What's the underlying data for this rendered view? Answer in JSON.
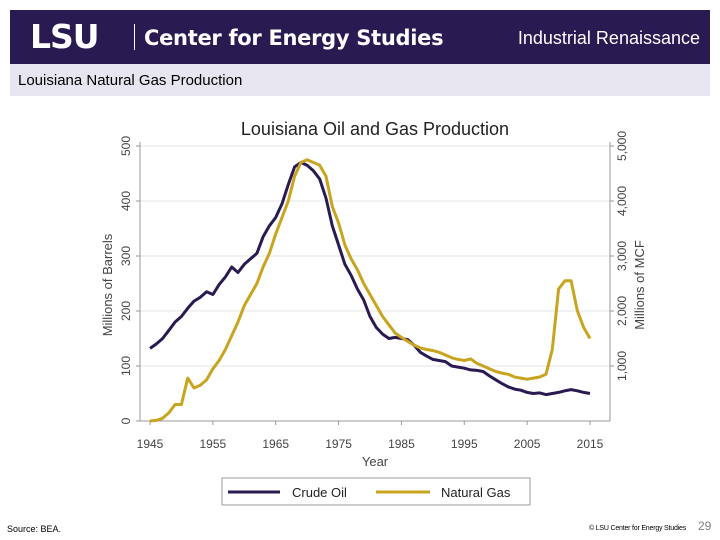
{
  "header": {
    "logo_text": "LSU",
    "center_text": "Center for Energy Studies",
    "title": "Industrial Renaissance"
  },
  "subtitle": "Louisiana Natural Gas Production",
  "footer": {
    "source": "Source:  BEA.",
    "copyright": "© LSU Center for Energy Studies",
    "slide_number": "29"
  },
  "colors": {
    "header_bg": "#2a1a52",
    "subbar_bg": "#e7e5ef",
    "crude_oil": "#2a1a52",
    "natural_gas": "#c9a41f"
  },
  "chart_data": {
    "type": "line",
    "title": "Louisiana Oil and Gas Production",
    "xlabel": "Year",
    "ylabel_left": "Millions of Barrels",
    "ylabel_right": "Millions of MCF",
    "xlim": [
      1945,
      2015
    ],
    "ylim_left": [
      0,
      500
    ],
    "ylim_right": [
      0,
      5000
    ],
    "x_ticks": [
      "1945",
      "1955",
      "1965",
      "1975",
      "1985",
      "1995",
      "2005",
      "2015"
    ],
    "y_ticks_left": [
      "0",
      "100",
      "200",
      "300",
      "400",
      "500"
    ],
    "y_ticks_right": [
      "1,000",
      "2,000",
      "3,000",
      "4,000",
      "5,000"
    ],
    "legend_position": "bottom",
    "series": [
      {
        "name": "Crude Oil",
        "axis": "left",
        "points": [
          [
            1945,
            132
          ],
          [
            1946,
            140
          ],
          [
            1947,
            150
          ],
          [
            1948,
            165
          ],
          [
            1949,
            180
          ],
          [
            1950,
            190
          ],
          [
            1951,
            205
          ],
          [
            1952,
            218
          ],
          [
            1953,
            225
          ],
          [
            1954,
            235
          ],
          [
            1955,
            230
          ],
          [
            1956,
            248
          ],
          [
            1957,
            262
          ],
          [
            1958,
            280
          ],
          [
            1959,
            270
          ],
          [
            1960,
            285
          ],
          [
            1961,
            295
          ],
          [
            1962,
            305
          ],
          [
            1963,
            335
          ],
          [
            1964,
            355
          ],
          [
            1965,
            370
          ],
          [
            1966,
            395
          ],
          [
            1967,
            430
          ],
          [
            1968,
            462
          ],
          [
            1969,
            470
          ],
          [
            1970,
            465
          ],
          [
            1971,
            455
          ],
          [
            1972,
            440
          ],
          [
            1973,
            405
          ],
          [
            1974,
            355
          ],
          [
            1975,
            320
          ],
          [
            1976,
            285
          ],
          [
            1977,
            265
          ],
          [
            1978,
            240
          ],
          [
            1979,
            220
          ],
          [
            1980,
            190
          ],
          [
            1981,
            170
          ],
          [
            1982,
            158
          ],
          [
            1983,
            150
          ],
          [
            1984,
            152
          ],
          [
            1985,
            150
          ],
          [
            1986,
            148
          ],
          [
            1987,
            138
          ],
          [
            1988,
            125
          ],
          [
            1989,
            118
          ],
          [
            1990,
            112
          ],
          [
            1991,
            110
          ],
          [
            1992,
            108
          ],
          [
            1993,
            100
          ],
          [
            1994,
            98
          ],
          [
            1995,
            96
          ],
          [
            1996,
            93
          ],
          [
            1997,
            92
          ],
          [
            1998,
            90
          ],
          [
            1999,
            82
          ],
          [
            2000,
            75
          ],
          [
            2001,
            68
          ],
          [
            2002,
            62
          ],
          [
            2003,
            58
          ],
          [
            2004,
            56
          ],
          [
            2005,
            52
          ],
          [
            2006,
            50
          ],
          [
            2007,
            51
          ],
          [
            2008,
            48
          ],
          [
            2009,
            50
          ],
          [
            2010,
            52
          ],
          [
            2011,
            55
          ],
          [
            2012,
            57
          ],
          [
            2013,
            55
          ],
          [
            2014,
            52
          ],
          [
            2015,
            50
          ]
        ]
      },
      {
        "name": "Natural Gas",
        "axis": "right",
        "points": [
          [
            1945,
            0
          ],
          [
            1946,
            10
          ],
          [
            1947,
            50
          ],
          [
            1948,
            150
          ],
          [
            1949,
            300
          ],
          [
            1950,
            300
          ],
          [
            1951,
            780
          ],
          [
            1952,
            600
          ],
          [
            1953,
            650
          ],
          [
            1954,
            750
          ],
          [
            1955,
            950
          ],
          [
            1956,
            1100
          ],
          [
            1957,
            1300
          ],
          [
            1958,
            1550
          ],
          [
            1959,
            1800
          ],
          [
            1960,
            2100
          ],
          [
            1961,
            2300
          ],
          [
            1962,
            2500
          ],
          [
            1963,
            2800
          ],
          [
            1964,
            3050
          ],
          [
            1965,
            3400
          ],
          [
            1966,
            3700
          ],
          [
            1967,
            4000
          ],
          [
            1968,
            4450
          ],
          [
            1969,
            4700
          ],
          [
            1970,
            4750
          ],
          [
            1971,
            4700
          ],
          [
            1972,
            4650
          ],
          [
            1973,
            4450
          ],
          [
            1974,
            3900
          ],
          [
            1975,
            3600
          ],
          [
            1976,
            3200
          ],
          [
            1977,
            2950
          ],
          [
            1978,
            2750
          ],
          [
            1979,
            2500
          ],
          [
            1980,
            2300
          ],
          [
            1981,
            2100
          ],
          [
            1982,
            1900
          ],
          [
            1983,
            1750
          ],
          [
            1984,
            1600
          ],
          [
            1985,
            1520
          ],
          [
            1986,
            1450
          ],
          [
            1987,
            1380
          ],
          [
            1988,
            1330
          ],
          [
            1989,
            1300
          ],
          [
            1990,
            1280
          ],
          [
            1991,
            1250
          ],
          [
            1992,
            1200
          ],
          [
            1993,
            1150
          ],
          [
            1994,
            1120
          ],
          [
            1995,
            1100
          ],
          [
            1996,
            1130
          ],
          [
            1997,
            1050
          ],
          [
            1998,
            1000
          ],
          [
            1999,
            950
          ],
          [
            2000,
            900
          ],
          [
            2001,
            870
          ],
          [
            2002,
            850
          ],
          [
            2003,
            800
          ],
          [
            2004,
            780
          ],
          [
            2005,
            760
          ],
          [
            2006,
            780
          ],
          [
            2007,
            800
          ],
          [
            2008,
            850
          ],
          [
            2009,
            1300
          ],
          [
            2010,
            2400
          ],
          [
            2011,
            2550
          ],
          [
            2012,
            2550
          ],
          [
            2013,
            2000
          ],
          [
            2014,
            1700
          ],
          [
            2015,
            1500
          ]
        ]
      }
    ]
  }
}
